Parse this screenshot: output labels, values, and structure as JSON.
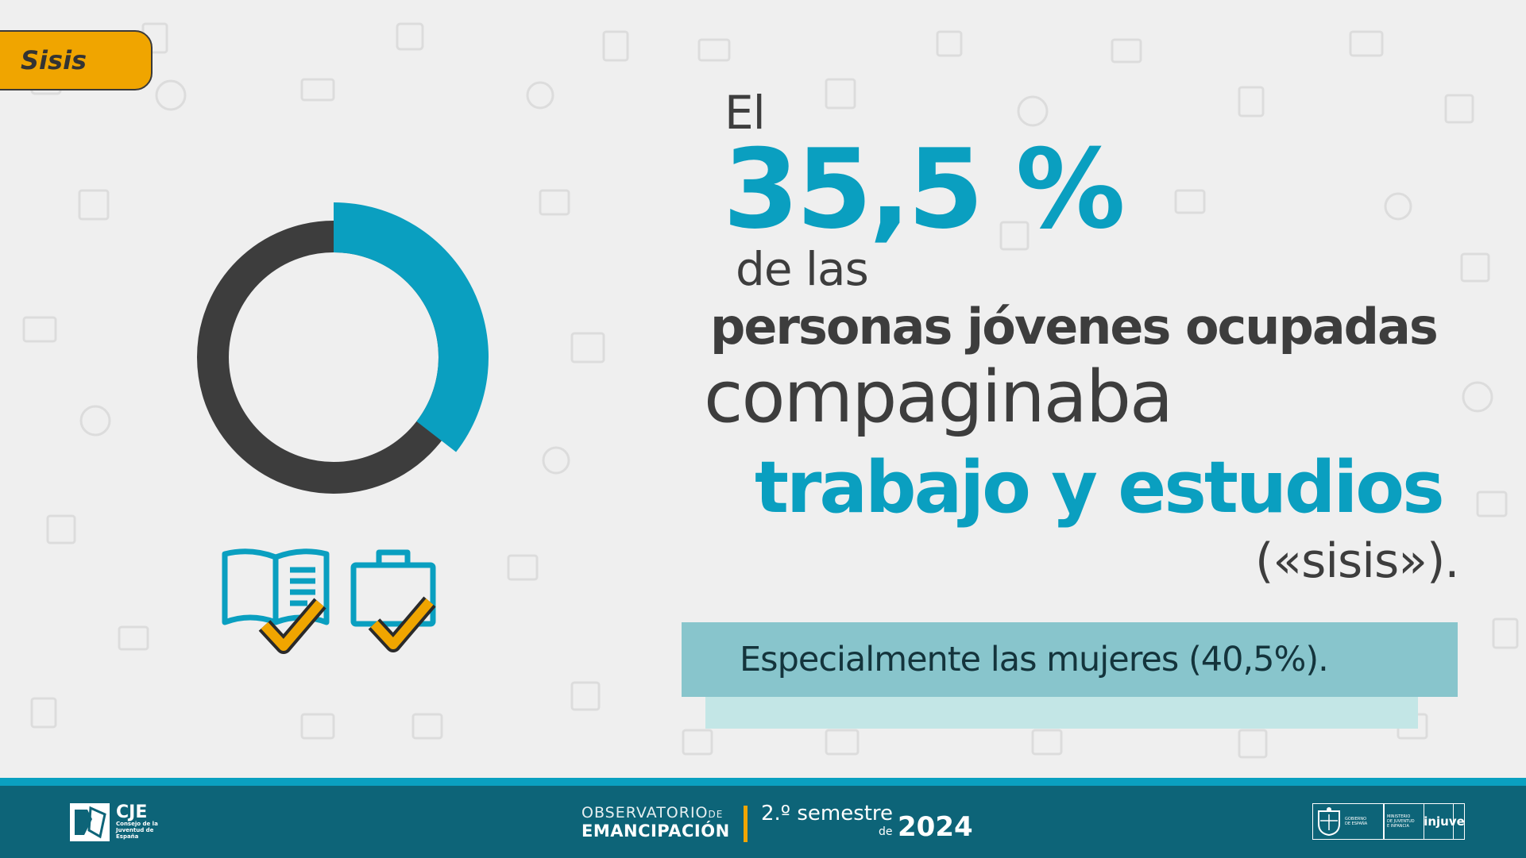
{
  "tag": {
    "label": "Sisis"
  },
  "headline": {
    "intro": "El",
    "percentage": "35,5 %",
    "line_de_las": "de las",
    "line_personas": "personas jóvenes ocupadas",
    "line_comp": "compaginaba",
    "line_trabajo": "trabajo y estudios",
    "line_sisis": "(«sisis»)."
  },
  "donut": {
    "value_fraction": 0.355,
    "accent_color": "#0a9fc0",
    "base_color": "#3d3d3d"
  },
  "highlight": {
    "text": "Especialmente las mujeres (40,5%)."
  },
  "icons": {
    "book": "open-book-icon",
    "briefcase": "briefcase-icon",
    "check": "checkmark-icon"
  },
  "footer": {
    "cje_title": "CJE",
    "cje_sub": [
      "Consejo de la",
      "Juventud de",
      "España"
    ],
    "obs_line1": "OBSERVATORIO",
    "obs_de": "DE",
    "obs_line2": "EMANCIPACIÓN",
    "semester": "2.º semestre",
    "semester_de": "de",
    "year": "2024",
    "gov_text": [
      "GOBIERNO",
      "DE ESPAÑA"
    ],
    "ministry_text": [
      "MINISTERIO",
      "DE JUVENTUD",
      "E INFANCIA"
    ],
    "injuve": "injuve"
  },
  "colors": {
    "accent": "#0a9fc0",
    "tag": "#f0a500",
    "footer": "#0d6478",
    "highlight": "#88c5cc"
  }
}
